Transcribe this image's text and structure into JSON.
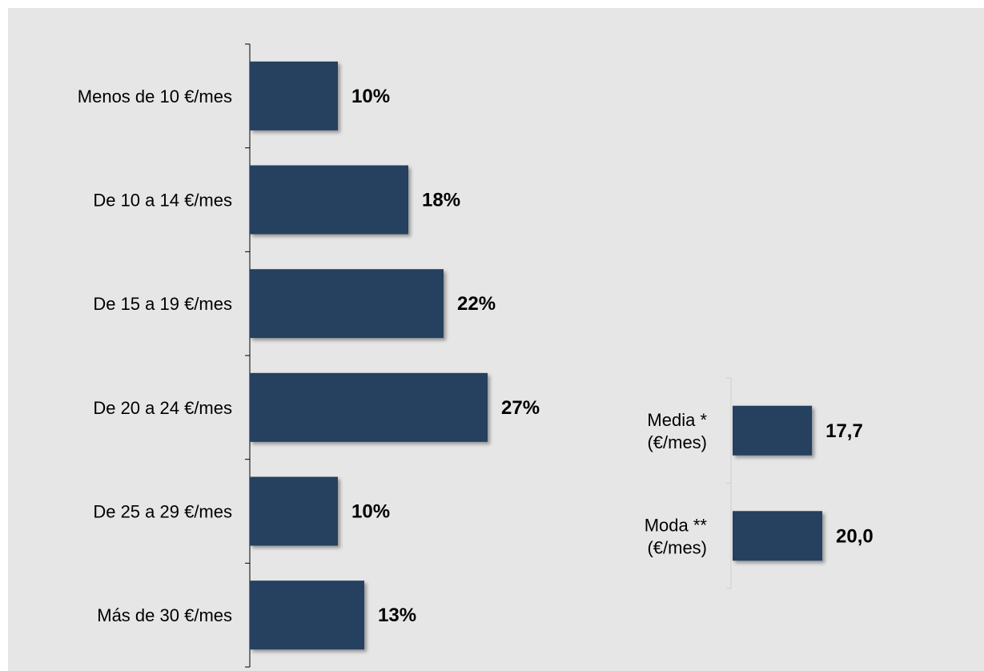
{
  "chart_data": [
    {
      "type": "bar",
      "orientation": "horizontal",
      "title": "",
      "categories": [
        "Menos de 10 €/mes",
        "De 10 a 14 €/mes",
        "De 15 a 19 €/mes",
        "De 20 a 24  €/mes",
        "De 25 a 29  €/mes",
        "Más de 30  €/mes"
      ],
      "values": [
        10,
        18,
        22,
        27,
        10,
        13
      ],
      "value_labels": [
        "10%",
        "18%",
        "22%",
        "27%",
        "10%",
        "13%"
      ],
      "unit": "%",
      "xlim": [
        0,
        40
      ],
      "grid": false,
      "legend": "none",
      "bar_color": "#253f5e"
    },
    {
      "type": "bar",
      "orientation": "horizontal",
      "title": "",
      "categories": [
        [
          "Media *",
          "(€/mes)"
        ],
        [
          "Moda **",
          "(€/mes)"
        ]
      ],
      "values": [
        17.7,
        20.0
      ],
      "value_labels": [
        "17,7",
        "20,0"
      ],
      "xlim": [
        0,
        60
      ],
      "grid": false,
      "legend": "none",
      "bar_color": "#253f5e"
    }
  ]
}
